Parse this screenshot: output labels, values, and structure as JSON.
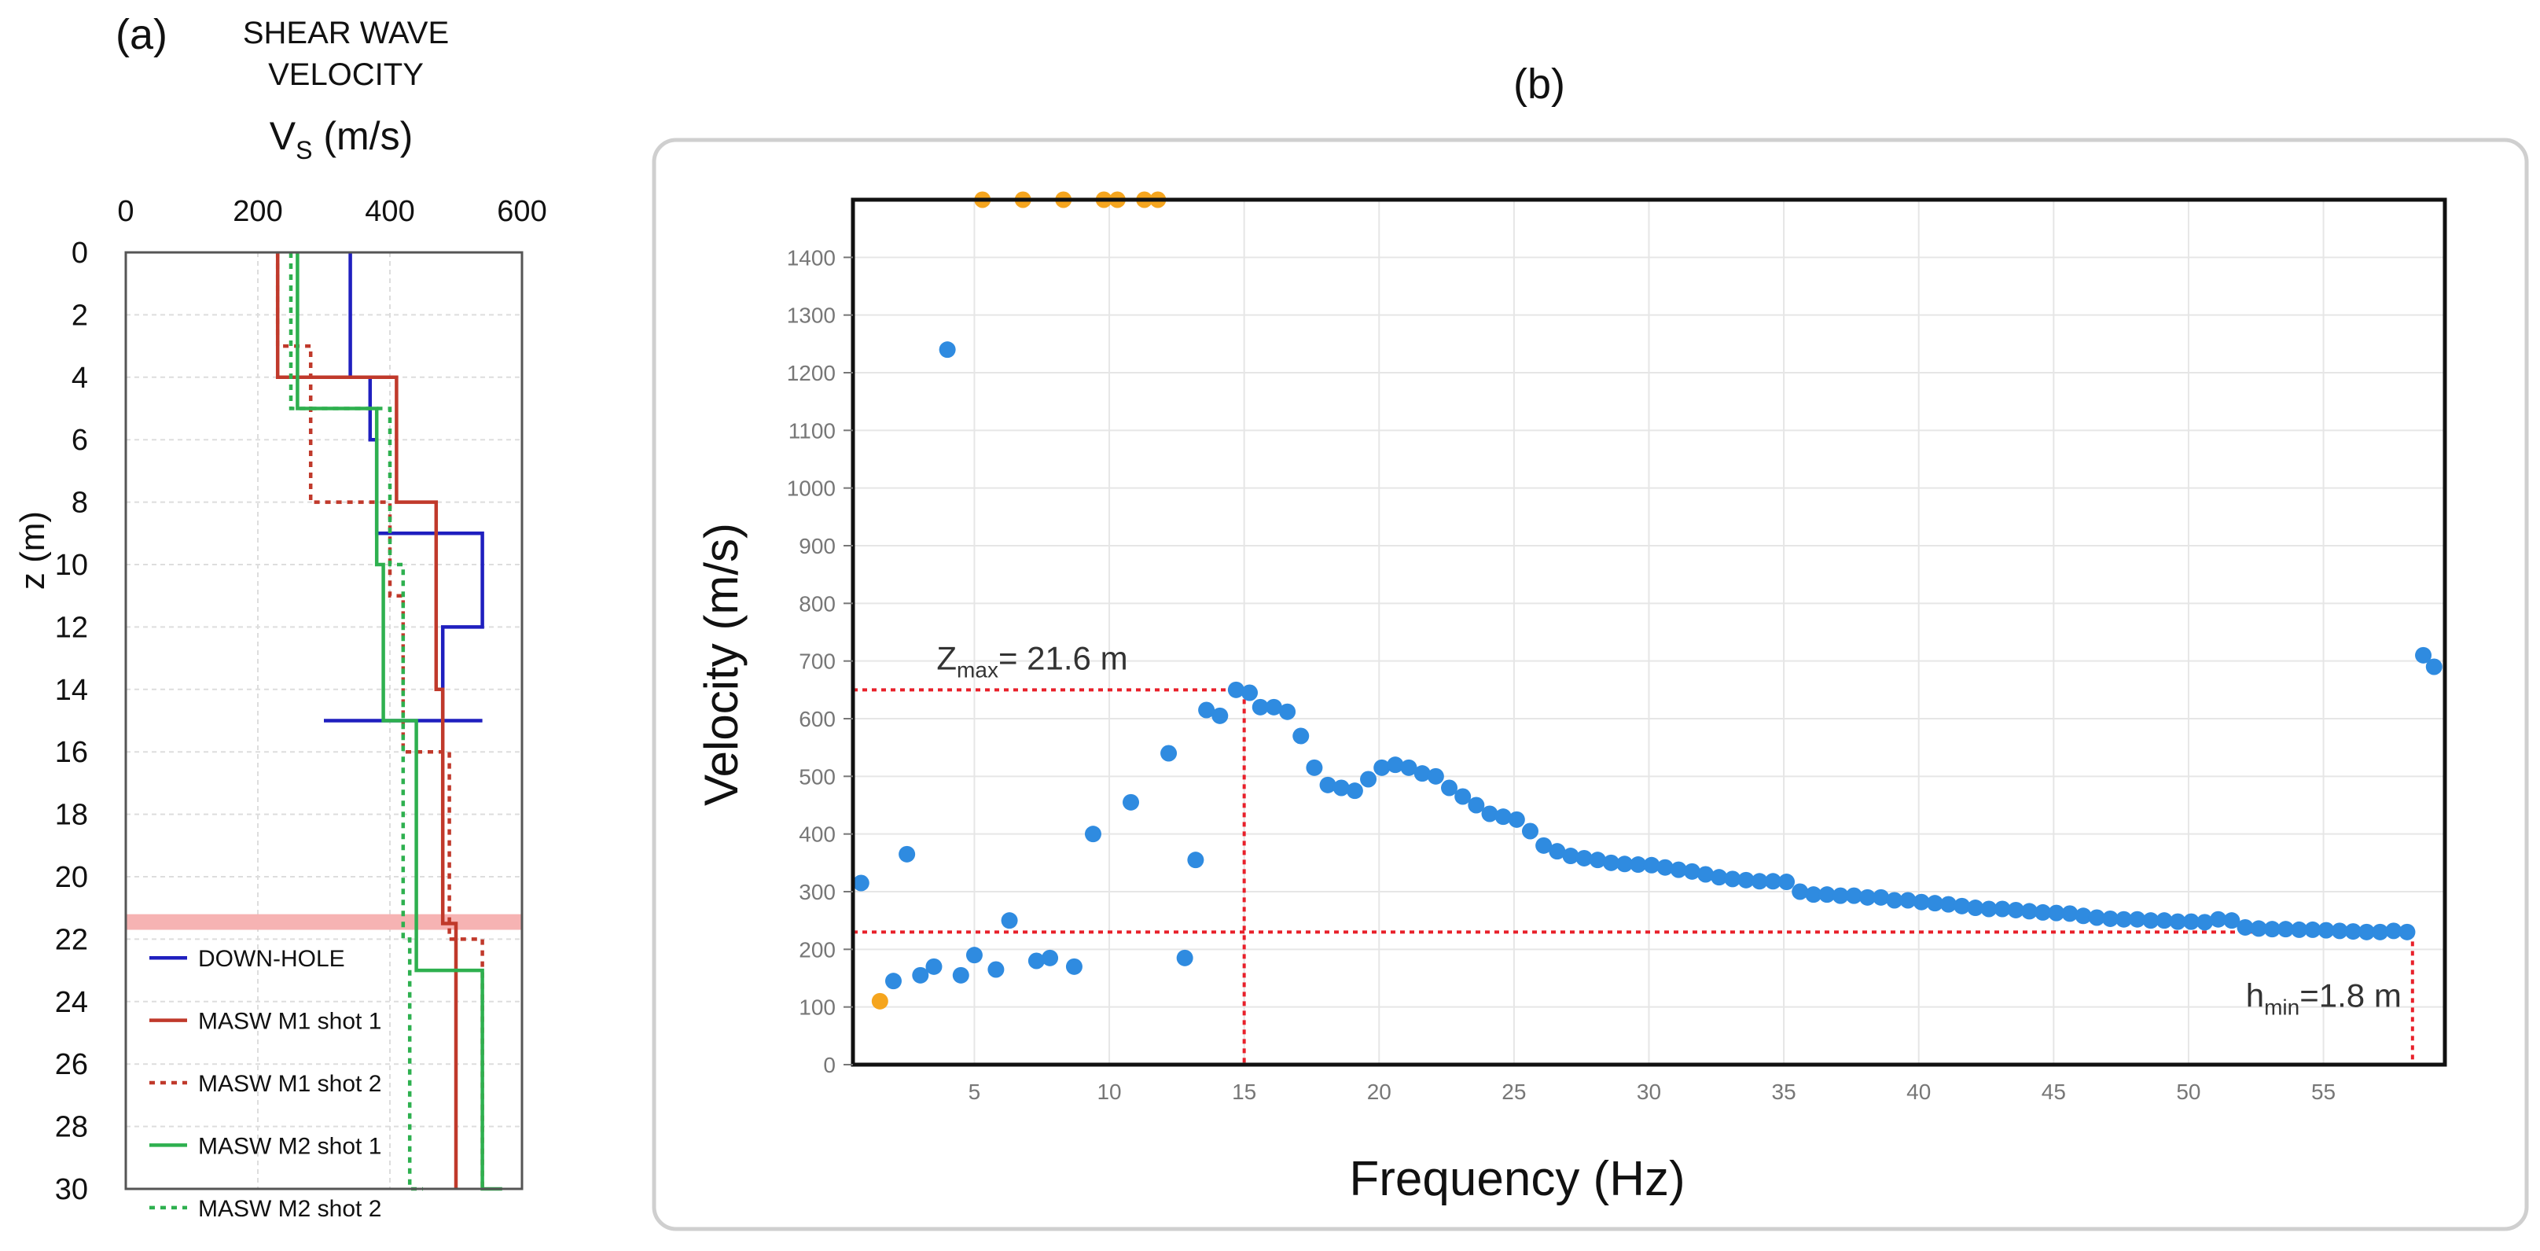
{
  "colors": {
    "downhole": "#1f1fbf",
    "m1": "#c0392b",
    "m2": "#2eb04f",
    "blue_points": "#2f8be0",
    "orange_points": "#f5a51e",
    "red_guides": "#e8202a",
    "band": "#f6b3b3"
  },
  "chart_data": [
    {
      "type": "line",
      "panel_label": "(a)",
      "title_line1": "SHEAR WAVE",
      "title_line2": "VELOCITY",
      "xlabel_main": "V",
      "xlabel_sub": "S",
      "xlabel_unit": " (m/s)",
      "ylabel": "z (m)",
      "xlim": [
        0,
        600
      ],
      "ylim": [
        0,
        30
      ],
      "xticks": [
        0,
        200,
        400,
        600
      ],
      "yticks": [
        0,
        2,
        4,
        6,
        8,
        10,
        12,
        14,
        16,
        18,
        20,
        22,
        24,
        26,
        28,
        30
      ],
      "highlight_band": [
        21.2,
        21.7
      ],
      "legend_position": "bottom-left",
      "series": [
        {
          "name": "DOWN-HOLE",
          "color_key": "downhole",
          "dash": "solid",
          "vs": [
            340,
            370,
            380,
            540,
            480,
            540,
            300
          ],
          "depth": [
            0,
            4,
            6,
            9,
            12,
            15,
            15
          ]
        },
        {
          "name": "MASW M1 shot 1",
          "color_key": "m1",
          "dash": "solid",
          "vs": [
            230,
            410,
            470,
            480,
            500,
            500
          ],
          "depth": [
            0,
            4,
            8,
            14,
            21.5,
            30
          ]
        },
        {
          "name": "MASW M1 shot 2",
          "color_key": "m1",
          "dash": "dotted",
          "vs": [
            230,
            280,
            400,
            420,
            490,
            540,
            540
          ],
          "depth": [
            0,
            3,
            8,
            11,
            16,
            22,
            30
          ]
        },
        {
          "name": "MASW M2 shot 1",
          "color_key": "m2",
          "dash": "solid",
          "vs": [
            260,
            380,
            390,
            440,
            540,
            570
          ],
          "depth": [
            0,
            5,
            10,
            15,
            23,
            30
          ]
        },
        {
          "name": "MASW M2 shot 2",
          "color_key": "m2",
          "dash": "dotted",
          "vs": [
            250,
            400,
            420,
            430,
            450
          ],
          "depth": [
            0,
            5,
            10,
            22,
            30
          ]
        }
      ]
    },
    {
      "type": "scatter",
      "panel_label": "(b)",
      "xlabel": "Frequency (Hz)",
      "ylabel": "Velocity (m/s)",
      "xlim": [
        0.5,
        59.5
      ],
      "ylim": [
        0,
        1500
      ],
      "xticks": [
        5,
        10,
        15,
        20,
        25,
        30,
        35,
        40,
        45,
        50,
        55
      ],
      "yticks": [
        0,
        100,
        200,
        300,
        400,
        500,
        600,
        700,
        800,
        900,
        1000,
        1100,
        1200,
        1300,
        1400
      ],
      "annotations": {
        "zmax_main": "Z",
        "zmax_sub": "max",
        "zmax_value": "= 21.6 m",
        "hmin_main": "h",
        "hmin_sub": "min",
        "hmin_value": "=1.8 m"
      },
      "guide_lines": {
        "zmax_velocity": 650,
        "zmax_frequency": 15,
        "hmin_velocity": 230,
        "hmin_frequency": 58.3
      },
      "orange_points": {
        "x": [
          1.5,
          5.3,
          6.8,
          8.3,
          9.8,
          10.3,
          11.3,
          11.8
        ],
        "y": [
          110,
          1500,
          1500,
          1500,
          1500,
          1500,
          1500,
          1500
        ]
      },
      "blue_points": {
        "x": [
          0.8,
          2.0,
          2.5,
          3.0,
          3.5,
          4.0,
          4.5,
          5.0,
          5.8,
          6.3,
          7.3,
          7.8,
          8.7,
          9.4,
          10.8,
          12.2,
          12.8,
          13.2,
          13.6,
          14.1,
          14.7,
          15.2,
          15.6,
          16.1,
          16.6,
          17.1,
          17.6,
          18.1,
          18.6,
          19.1,
          19.6,
          20.1,
          20.6,
          21.1,
          21.6,
          22.1,
          22.6,
          23.1,
          23.6,
          24.1,
          24.6,
          25.1,
          25.6,
          26.1,
          26.6,
          27.1,
          27.6,
          28.1,
          28.6,
          29.1,
          29.6,
          30.1,
          30.6,
          31.1,
          31.6,
          32.1,
          32.6,
          33.1,
          33.6,
          34.1,
          34.6,
          35.1,
          35.6,
          36.1,
          36.6,
          37.1,
          37.6,
          38.1,
          38.6,
          39.1,
          39.6,
          40.1,
          40.6,
          41.1,
          41.6,
          42.1,
          42.6,
          43.1,
          43.6,
          44.1,
          44.6,
          45.1,
          45.6,
          46.1,
          46.6,
          47.1,
          47.6,
          48.1,
          48.6,
          49.1,
          49.6,
          50.1,
          50.6,
          51.1,
          51.6,
          52.1,
          52.6,
          53.1,
          53.6,
          54.1,
          54.6,
          55.1,
          55.6,
          56.1,
          56.6,
          57.1,
          57.6,
          58.1,
          58.7,
          59.1
        ],
        "y": [
          315,
          145,
          365,
          155,
          170,
          1240,
          155,
          190,
          165,
          250,
          180,
          185,
          170,
          400,
          455,
          540,
          185,
          355,
          615,
          605,
          650,
          645,
          620,
          620,
          612,
          570,
          515,
          485,
          480,
          475,
          495,
          515,
          520,
          515,
          505,
          500,
          480,
          465,
          450,
          435,
          430,
          425,
          405,
          380,
          370,
          362,
          358,
          355,
          350,
          348,
          347,
          346,
          342,
          338,
          335,
          330,
          325,
          322,
          320,
          318,
          318,
          317,
          300,
          295,
          295,
          293,
          293,
          290,
          290,
          285,
          285,
          282,
          280,
          278,
          275,
          272,
          270,
          270,
          268,
          266,
          264,
          263,
          262,
          258,
          255,
          253,
          252,
          252,
          250,
          250,
          248,
          248,
          247,
          252,
          250,
          238,
          236,
          235,
          235,
          234,
          234,
          233,
          232,
          231,
          230,
          230,
          232,
          230,
          710,
          690
        ]
      }
    }
  ]
}
